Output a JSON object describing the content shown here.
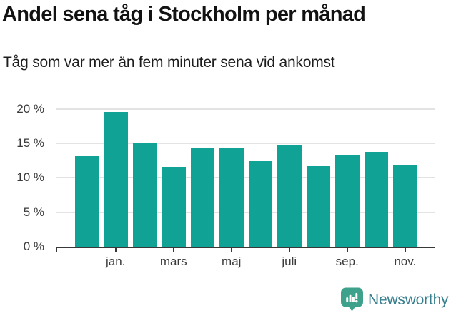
{
  "chart_data": {
    "type": "bar",
    "title": "Andel sena tåg i Stockholm per månad",
    "subtitle": "Tåg som var mer än fem minuter sena vid ankomst",
    "values": [
      13.1,
      19.5,
      15.1,
      11.6,
      14.4,
      14.3,
      12.4,
      14.7,
      11.7,
      13.3,
      13.7,
      11.8
    ],
    "unit": "%",
    "x_tick_labels": [
      "jan.",
      "mars",
      "maj",
      "juli",
      "sep.",
      "nov."
    ],
    "x_tick_bar_indices": [
      1,
      3,
      5,
      7,
      9,
      11
    ],
    "y_ticks": [
      0,
      5,
      10,
      15,
      20
    ],
    "y_tick_labels": [
      "0 %",
      "5 %",
      "10 %",
      "15 %",
      "20 %"
    ],
    "ylim": [
      0,
      20
    ],
    "grid": true,
    "legend": "none",
    "bar_color": "#11a296"
  },
  "footer": {
    "brand": "Newsworthy",
    "brand_text_color": "#377f8f",
    "logo_color": "#3ea18c"
  }
}
